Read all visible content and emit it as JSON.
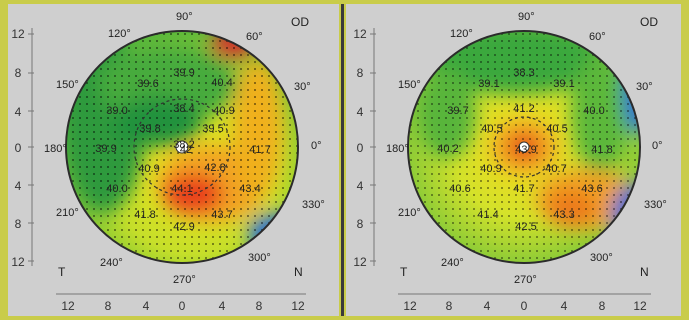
{
  "maps": [
    {
      "eye_label": "OD",
      "nasal_label": "N",
      "temporal_label": "T",
      "y_ticks": [
        "12",
        "8",
        "4",
        "0",
        "4",
        "8",
        "12"
      ],
      "x_ticks": [
        "12",
        "8",
        "4",
        "0",
        "4",
        "8",
        "12"
      ],
      "angle_labels": [
        "90°",
        "60°",
        "30°",
        "0°",
        "330°",
        "300°",
        "270°",
        "240°",
        "210°",
        "180°",
        "150°",
        "120°"
      ],
      "values": [
        "39.9",
        "40.4",
        "39.6",
        "40.9",
        "39.0",
        "38.4",
        "39.8",
        "39.5",
        "39.9",
        "40.9",
        "42",
        "42.8",
        "41.7",
        "40.0",
        "44.1",
        "43.4",
        "41.8",
        "43.7",
        "42.9",
        "38.2"
      ]
    },
    {
      "eye_label": "OD",
      "nasal_label": "N",
      "temporal_label": "T",
      "y_ticks": [
        "12",
        "8",
        "4",
        "0",
        "4",
        "8",
        "12"
      ],
      "x_ticks": [
        "12",
        "8",
        "4",
        "0",
        "4",
        "8",
        "12"
      ],
      "angle_labels": [
        "90°",
        "60°",
        "30°",
        "0°",
        "330°",
        "300°",
        "270°",
        "240°",
        "210°",
        "180°",
        "150°",
        "120°"
      ],
      "values": [
        "38.3",
        "39.1",
        "39.1",
        "39.7",
        "41.2",
        "40.0",
        "40.5",
        "40.5",
        "40.2",
        "43.9",
        "41.8",
        "40.9",
        "40.7",
        "40.6",
        "41.7",
        "43.6",
        "41.4",
        "43.3",
        "42.5"
      ]
    }
  ]
}
